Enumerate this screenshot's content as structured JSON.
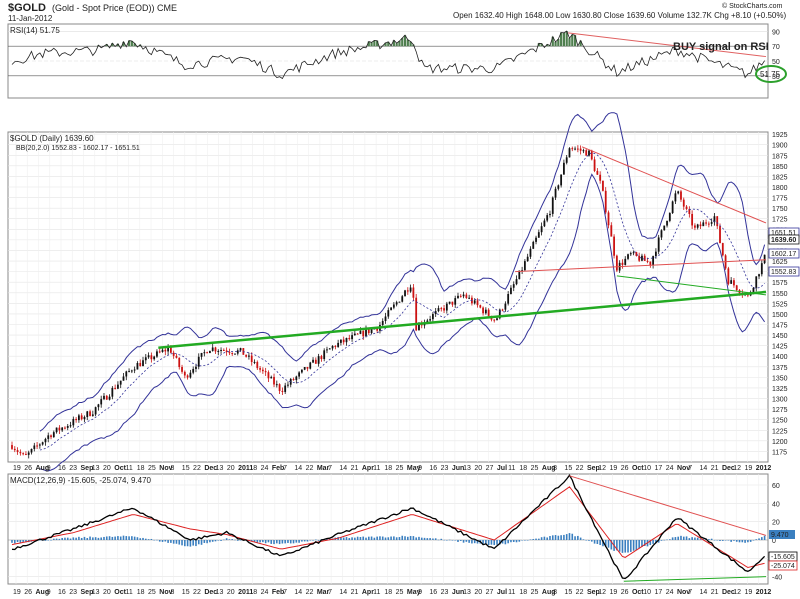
{
  "header": {
    "symbol": "$GOLD",
    "description": "(Gold - Spot Price (EOD)) CME",
    "date": "11-Jan-2012",
    "quote": "Open 1632.40  High 1648.00  Low 1630.80  Close 1639.60  Volume 132.7K  Chg +8.10 (+0.50%)",
    "brand": "© StockCharts.com"
  },
  "rsi": {
    "label": "RSI(14) 51.75",
    "value_tag": "51.75",
    "ticks": [
      90,
      70,
      50,
      30
    ],
    "annotation": "BUY signal on RSI",
    "colors": {
      "line": "#222222",
      "overbought_fill": "#4f7f4f",
      "trend": "#e06060",
      "circle": "#2ca02c",
      "annotation": "#2ca02c"
    }
  },
  "price": {
    "label": "$GOLD (Daily) 1639.60",
    "bb_label": "BB(20,2.0) 1552.83 - 1602.17 - 1651.51",
    "value_tags": [
      "1651.51",
      "1639.60",
      "1602.17",
      "1552.83"
    ],
    "ticks": [
      1925,
      1900,
      1875,
      1850,
      1825,
      1800,
      1775,
      1750,
      1725,
      1700,
      1675,
      1650,
      1625,
      1600,
      1575,
      1550,
      1525,
      1500,
      1475,
      1450,
      1425,
      1400,
      1375,
      1350,
      1325,
      1300,
      1275,
      1250,
      1225,
      1200,
      1175
    ],
    "colors": {
      "up": "#111111",
      "down": "#cc1111",
      "bands": "#333399",
      "support": "#22aa22",
      "resistance": "#e05050"
    }
  },
  "macd": {
    "label": "MACD(12,26,9) -15.605, -25.074, 9.470",
    "value_tags": [
      "9.470",
      "-15.605",
      "-25.074"
    ],
    "ticks": [
      60,
      40,
      20,
      0,
      -20,
      -40
    ],
    "colors": {
      "macd": "#000000",
      "signal": "#dd2222",
      "histogram": "#3a7fc0"
    }
  },
  "x_axis": {
    "labels": [
      "19",
      "26",
      "Aug",
      "9",
      "16",
      "23",
      "Sep",
      "13",
      "20",
      "Oct",
      "11",
      "18",
      "25",
      "Nov",
      "8",
      "15",
      "22",
      "Dec",
      "13",
      "20",
      "2011",
      "18",
      "24",
      "Feb",
      "7",
      "14",
      "22",
      "Mar",
      "7",
      "14",
      "21",
      "Apr",
      "11",
      "18",
      "25",
      "May",
      "9",
      "16",
      "23",
      "Jun",
      "13",
      "20",
      "27",
      "Jul",
      "11",
      "18",
      "25",
      "Aug",
      "8",
      "15",
      "22",
      "Sep",
      "12",
      "19",
      "26",
      "Oct",
      "10",
      "17",
      "24",
      "Nov",
      "7",
      "14",
      "21",
      "Dec",
      "12",
      "19",
      "2012"
    ]
  },
  "chart_data": {
    "type": "candlestick",
    "title": "$GOLD (Gold - Spot Price (EOD)) CME",
    "x_range": [
      "2010-07-19",
      "2012-01-11"
    ],
    "ylim": [
      1150,
      1930
    ],
    "price_keypoints": [
      {
        "date": "2010-07-19",
        "close": 1190
      },
      {
        "date": "2010-07-28",
        "close": 1160
      },
      {
        "date": "2010-08-15",
        "close": 1215
      },
      {
        "date": "2010-09-15",
        "close": 1270
      },
      {
        "date": "2010-10-14",
        "close": 1375
      },
      {
        "date": "2010-11-09",
        "close": 1420
      },
      {
        "date": "2010-11-20",
        "close": 1350
      },
      {
        "date": "2010-12-07",
        "close": 1420
      },
      {
        "date": "2010-12-31",
        "close": 1410
      },
      {
        "date": "2011-01-28",
        "close": 1320
      },
      {
        "date": "2011-03-07",
        "close": 1425
      },
      {
        "date": "2011-04-08",
        "close": 1470
      },
      {
        "date": "2011-05-02",
        "close": 1575
      },
      {
        "date": "2011-05-05",
        "close": 1470
      },
      {
        "date": "2011-06-08",
        "close": 1545
      },
      {
        "date": "2011-07-01",
        "close": 1485
      },
      {
        "date": "2011-07-19",
        "close": 1600
      },
      {
        "date": "2011-08-09",
        "close": 1745
      },
      {
        "date": "2011-08-23",
        "close": 1895
      },
      {
        "date": "2011-09-06",
        "close": 1880
      },
      {
        "date": "2011-09-15",
        "close": 1800
      },
      {
        "date": "2011-09-26",
        "close": 1610
      },
      {
        "date": "2011-10-06",
        "close": 1640
      },
      {
        "date": "2011-10-20",
        "close": 1620
      },
      {
        "date": "2011-11-08",
        "close": 1790
      },
      {
        "date": "2011-11-21",
        "close": 1700
      },
      {
        "date": "2011-12-05",
        "close": 1730
      },
      {
        "date": "2011-12-15",
        "close": 1580
      },
      {
        "date": "2011-12-29",
        "close": 1540
      },
      {
        "date": "2012-01-11",
        "close": 1639.6
      }
    ],
    "rsi_keypoints": [
      {
        "date": "2010-07-19",
        "value": 50
      },
      {
        "date": "2010-08-10",
        "value": 60
      },
      {
        "date": "2010-09-20",
        "value": 65
      },
      {
        "date": "2010-10-12",
        "value": 78
      },
      {
        "date": "2010-11-20",
        "value": 45
      },
      {
        "date": "2010-12-31",
        "value": 55
      },
      {
        "date": "2011-01-28",
        "value": 32
      },
      {
        "date": "2011-03-07",
        "value": 60
      },
      {
        "date": "2011-05-02",
        "value": 82
      },
      {
        "date": "2011-05-10",
        "value": 40
      },
      {
        "date": "2011-07-01",
        "value": 40
      },
      {
        "date": "2011-08-22",
        "value": 88
      },
      {
        "date": "2011-09-26",
        "value": 35
      },
      {
        "date": "2011-11-08",
        "value": 65
      },
      {
        "date": "2011-12-29",
        "value": 32
      },
      {
        "date": "2012-01-11",
        "value": 51.75
      }
    ],
    "macd_keypoints": [
      {
        "date": "2010-07-19",
        "macd": -10,
        "signal": -5
      },
      {
        "date": "2010-09-01",
        "macd": 12,
        "signal": 8
      },
      {
        "date": "2010-10-14",
        "macd": 35,
        "signal": 28
      },
      {
        "date": "2010-11-24",
        "macd": 0,
        "signal": 12
      },
      {
        "date": "2010-12-20",
        "macd": 8,
        "signal": 6
      },
      {
        "date": "2011-01-28",
        "macd": -18,
        "signal": -10
      },
      {
        "date": "2011-03-10",
        "macd": 6,
        "signal": 2
      },
      {
        "date": "2011-05-02",
        "macd": 35,
        "signal": 28
      },
      {
        "date": "2011-06-30",
        "macd": -10,
        "signal": 0
      },
      {
        "date": "2011-08-23",
        "macd": 70,
        "signal": 58
      },
      {
        "date": "2011-10-01",
        "macd": -45,
        "signal": -20
      },
      {
        "date": "2011-11-08",
        "macd": 25,
        "signal": 18
      },
      {
        "date": "2011-12-29",
        "macd": -35,
        "signal": -30
      },
      {
        "date": "2012-01-11",
        "macd": -15.605,
        "signal": -25.074
      }
    ],
    "bollinger": {
      "upper": 1651.51,
      "middle": 1602.17,
      "lower": 1552.83
    },
    "indicators": {
      "rsi14": 51.75,
      "macd": -15.605,
      "signal": -25.074,
      "histogram": 9.47
    }
  }
}
